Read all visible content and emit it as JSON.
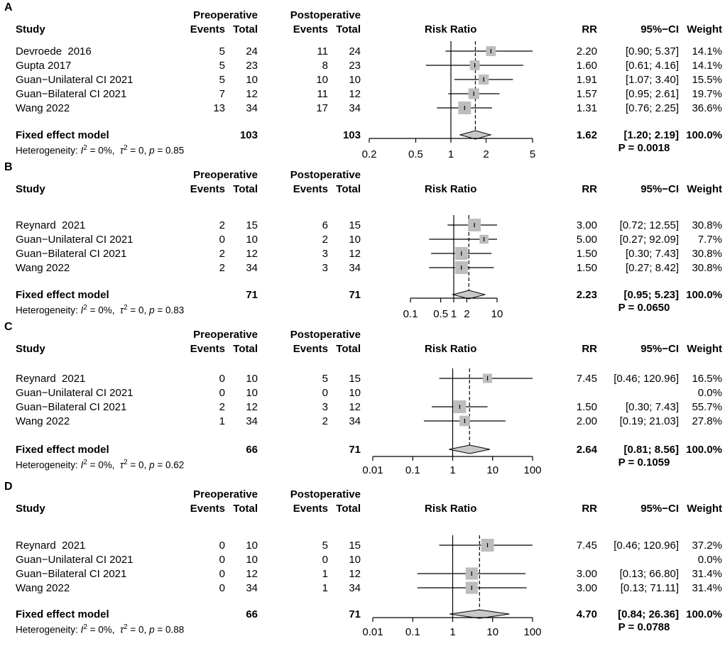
{
  "chart_data": [
    {
      "type": "forest",
      "panel_label": "A",
      "col_group_pre": "Preoperative",
      "col_group_post": "Postoperative",
      "headers": {
        "study": "Study",
        "events": "Events",
        "total": "Total",
        "plot": "Risk Ratio",
        "rr": "RR",
        "ci": "95%−CI",
        "weight": "Weight"
      },
      "studies": [
        {
          "name": "Devroede  2016",
          "pre_events": "5",
          "pre_total": "24",
          "post_events": "11",
          "post_total": "24",
          "rr": "2.20",
          "ci_text": "[0.90; 5.37]",
          "weight": "14.1%",
          "rr_value": 2.2,
          "lo": 0.9,
          "hi": 5.37,
          "weight_value": 14.1
        },
        {
          "name": "Gupta 2017",
          "pre_events": "5",
          "pre_total": "23",
          "post_events": "8",
          "post_total": "23",
          "rr": "1.60",
          "ci_text": "[0.61; 4.16]",
          "weight": "14.1%",
          "rr_value": 1.6,
          "lo": 0.61,
          "hi": 4.16,
          "weight_value": 14.1
        },
        {
          "name": "Guan−Unilateral CI 2021",
          "pre_events": "5",
          "pre_total": "10",
          "post_events": "10",
          "post_total": "10",
          "rr": "1.91",
          "ci_text": "[1.07; 3.40]",
          "weight": "15.5%",
          "rr_value": 1.91,
          "lo": 1.07,
          "hi": 3.4,
          "weight_value": 15.5
        },
        {
          "name": "Guan−Bilateral CI 2021",
          "pre_events": "7",
          "pre_total": "12",
          "post_events": "11",
          "post_total": "12",
          "rr": "1.57",
          "ci_text": "[0.95; 2.61]",
          "weight": "19.7%",
          "rr_value": 1.57,
          "lo": 0.95,
          "hi": 2.61,
          "weight_value": 19.7
        },
        {
          "name": "Wang 2022",
          "pre_events": "13",
          "pre_total": "34",
          "post_events": "17",
          "post_total": "34",
          "rr": "1.31",
          "ci_text": "[0.76; 2.25]",
          "weight": "36.6%",
          "rr_value": 1.31,
          "lo": 0.76,
          "hi": 2.25,
          "weight_value": 36.6
        }
      ],
      "summary": {
        "label": "Fixed effect model",
        "pre_total": "103",
        "post_total": "103",
        "rr": "1.62",
        "ci_text": "[1.20; 2.19]",
        "weight": "100.0%",
        "rr_value": 1.62,
        "lo": 1.2,
        "hi": 2.19
      },
      "heterogeneity": {
        "prefix": "Heterogeneity: ",
        "I": "I",
        "sup_I": "2",
        "mid": " = 0%,  ",
        "tau": "τ",
        "sup_tau": "2",
        "tail": " = 0, ",
        "p": "p",
        "p_tail": " = 0.85"
      },
      "p_value": "P = 0.0018",
      "xaxis": {
        "min": 0.2,
        "max": 5,
        "ticks": [
          0.2,
          0.5,
          1,
          2,
          5
        ],
        "tick_labels": [
          "0.2",
          "0.5",
          "1",
          "2",
          "5"
        ]
      }
    },
    {
      "type": "forest",
      "panel_label": "B",
      "col_group_pre": "Preoperative",
      "col_group_post": "Postoperative",
      "headers": {
        "study": "Study",
        "events": "Events",
        "total": "Total",
        "plot": "Risk Ratio",
        "rr": "RR",
        "ci": "95%−CI",
        "weight": "Weight"
      },
      "studies": [
        {
          "name": "Reynard  2021",
          "pre_events": "2",
          "pre_total": "15",
          "post_events": "6",
          "post_total": "15",
          "rr": "3.00",
          "ci_text": "[0.72; 12.55]",
          "weight": "30.8%",
          "rr_value": 3.0,
          "lo": 0.72,
          "hi": 12.55,
          "weight_value": 30.8
        },
        {
          "name": "Guan−Unilateral CI 2021",
          "pre_events": "0",
          "pre_total": "10",
          "post_events": "2",
          "post_total": "10",
          "rr": "5.00",
          "ci_text": "[0.27; 92.09]",
          "weight": "7.7%",
          "rr_value": 5.0,
          "lo": 0.27,
          "hi": 92.09,
          "weight_value": 7.7
        },
        {
          "name": "Guan−Bilateral CI 2021",
          "pre_events": "2",
          "pre_total": "12",
          "post_events": "3",
          "post_total": "12",
          "rr": "1.50",
          "ci_text": "[0.30; 7.43]",
          "weight": "30.8%",
          "rr_value": 1.5,
          "lo": 0.3,
          "hi": 7.43,
          "weight_value": 30.8
        },
        {
          "name": "Wang 2022",
          "pre_events": "2",
          "pre_total": "34",
          "post_events": "3",
          "post_total": "34",
          "rr": "1.50",
          "ci_text": "[0.27; 8.42]",
          "weight": "30.8%",
          "rr_value": 1.5,
          "lo": 0.27,
          "hi": 8.42,
          "weight_value": 30.8
        }
      ],
      "summary": {
        "label": "Fixed effect model",
        "pre_total": "71",
        "post_total": "71",
        "rr": "2.23",
        "ci_text": "[0.95; 5.23]",
        "weight": "100.0%",
        "rr_value": 2.23,
        "lo": 0.95,
        "hi": 5.23
      },
      "heterogeneity": {
        "prefix": "Heterogeneity: ",
        "I": "I",
        "sup_I": "2",
        "mid": " = 0%,  ",
        "tau": "τ",
        "sup_tau": "2",
        "tail": " = 0, ",
        "p": "p",
        "p_tail": " = 0.83"
      },
      "p_value": "P = 0.0650",
      "xaxis": {
        "min": 0.1,
        "max": 10,
        "ticks": [
          0.1,
          0.5,
          1,
          2,
          10
        ],
        "tick_labels": [
          "0.1",
          "0.5",
          "1",
          "2",
          "10"
        ]
      }
    },
    {
      "type": "forest",
      "panel_label": "C",
      "col_group_pre": "Preoperative",
      "col_group_post": "Postoperative",
      "headers": {
        "study": "Study",
        "events": "Events",
        "total": "Total",
        "plot": "Risk Ratio",
        "rr": "RR",
        "ci": "95%−CI",
        "weight": "Weight"
      },
      "studies": [
        {
          "name": "Reynard  2021",
          "pre_events": "0",
          "pre_total": "10",
          "post_events": "5",
          "post_total": "15",
          "rr": "7.45",
          "ci_text": "[0.46; 120.96]",
          "weight": "16.5%",
          "rr_value": 7.45,
          "lo": 0.46,
          "hi": 120.96,
          "weight_value": 16.5
        },
        {
          "name": "Guan−Unilateral CI 2021",
          "pre_events": "0",
          "pre_total": "10",
          "post_events": "0",
          "post_total": "10",
          "rr": "",
          "ci_text": "",
          "weight": "0.0%",
          "rr_value": null,
          "lo": null,
          "hi": null,
          "weight_value": 0.0
        },
        {
          "name": "Guan−Bilateral CI 2021",
          "pre_events": "2",
          "pre_total": "12",
          "post_events": "3",
          "post_total": "12",
          "rr": "1.50",
          "ci_text": "[0.30; 7.43]",
          "weight": "55.7%",
          "rr_value": 1.5,
          "lo": 0.3,
          "hi": 7.43,
          "weight_value": 55.7
        },
        {
          "name": "Wang 2022",
          "pre_events": "1",
          "pre_total": "34",
          "post_events": "2",
          "post_total": "34",
          "rr": "2.00",
          "ci_text": "[0.19; 21.03]",
          "weight": "27.8%",
          "rr_value": 2.0,
          "lo": 0.19,
          "hi": 21.03,
          "weight_value": 27.8
        }
      ],
      "summary": {
        "label": "Fixed effect model",
        "pre_total": "66",
        "post_total": "71",
        "rr": "2.64",
        "ci_text": "[0.81; 8.56]",
        "weight": "100.0%",
        "rr_value": 2.64,
        "lo": 0.81,
        "hi": 8.56
      },
      "heterogeneity": {
        "prefix": "Heterogeneity: ",
        "I": "I",
        "sup_I": "2",
        "mid": " = 0%,  ",
        "tau": "τ",
        "sup_tau": "2",
        "tail": " = 0, ",
        "p": "p",
        "p_tail": " = 0.62"
      },
      "p_value": "P = 0.1059",
      "xaxis": {
        "min": 0.01,
        "max": 100,
        "ticks": [
          0.01,
          0.1,
          1,
          10,
          100
        ],
        "tick_labels": [
          "0.01",
          "0.1",
          "1",
          "10",
          "100"
        ]
      }
    },
    {
      "type": "forest",
      "panel_label": "D",
      "col_group_pre": "Preoperative",
      "col_group_post": "Postoperative",
      "headers": {
        "study": "Study",
        "events": "Events",
        "total": "Total",
        "plot": "Risk Ratio",
        "rr": "RR",
        "ci": "95%−CI",
        "weight": "Weight"
      },
      "studies": [
        {
          "name": "Reynard  2021",
          "pre_events": "0",
          "pre_total": "10",
          "post_events": "5",
          "post_total": "15",
          "rr": "7.45",
          "ci_text": "[0.46; 120.96]",
          "weight": "37.2%",
          "rr_value": 7.45,
          "lo": 0.46,
          "hi": 120.96,
          "weight_value": 37.2
        },
        {
          "name": "Guan−Unilateral CI 2021",
          "pre_events": "0",
          "pre_total": "10",
          "post_events": "0",
          "post_total": "10",
          "rr": "",
          "ci_text": "",
          "weight": "0.0%",
          "rr_value": null,
          "lo": null,
          "hi": null,
          "weight_value": 0.0
        },
        {
          "name": "Guan−Bilateral CI 2021",
          "pre_events": "0",
          "pre_total": "12",
          "post_events": "1",
          "post_total": "12",
          "rr": "3.00",
          "ci_text": "[0.13; 66.80]",
          "weight": "31.4%",
          "rr_value": 3.0,
          "lo": 0.13,
          "hi": 66.8,
          "weight_value": 31.4
        },
        {
          "name": "Wang 2022",
          "pre_events": "0",
          "pre_total": "34",
          "post_events": "1",
          "post_total": "34",
          "rr": "3.00",
          "ci_text": "[0.13; 71.11]",
          "weight": "31.4%",
          "rr_value": 3.0,
          "lo": 0.13,
          "hi": 71.11,
          "weight_value": 31.4
        }
      ],
      "summary": {
        "label": "Fixed effect model",
        "pre_total": "66",
        "post_total": "71",
        "rr": "4.70",
        "ci_text": "[0.84; 26.36]",
        "weight": "100.0%",
        "rr_value": 4.7,
        "lo": 0.84,
        "hi": 26.36
      },
      "heterogeneity": {
        "prefix": "Heterogeneity: ",
        "I": "I",
        "sup_I": "2",
        "mid": " = 0%,  ",
        "tau": "τ",
        "sup_tau": "2",
        "tail": " = 0, ",
        "p": "p",
        "p_tail": " = 0.88"
      },
      "p_value": "P = 0.0788",
      "xaxis": {
        "min": 0.01,
        "max": 100,
        "ticks": [
          0.01,
          0.1,
          1,
          10,
          100
        ],
        "tick_labels": [
          "0.01",
          "0.1",
          "1",
          "10",
          "100"
        ]
      }
    }
  ],
  "colors": {
    "square": "#bdbdbd",
    "diamond": "#c8c8c8",
    "line": "#000000"
  }
}
